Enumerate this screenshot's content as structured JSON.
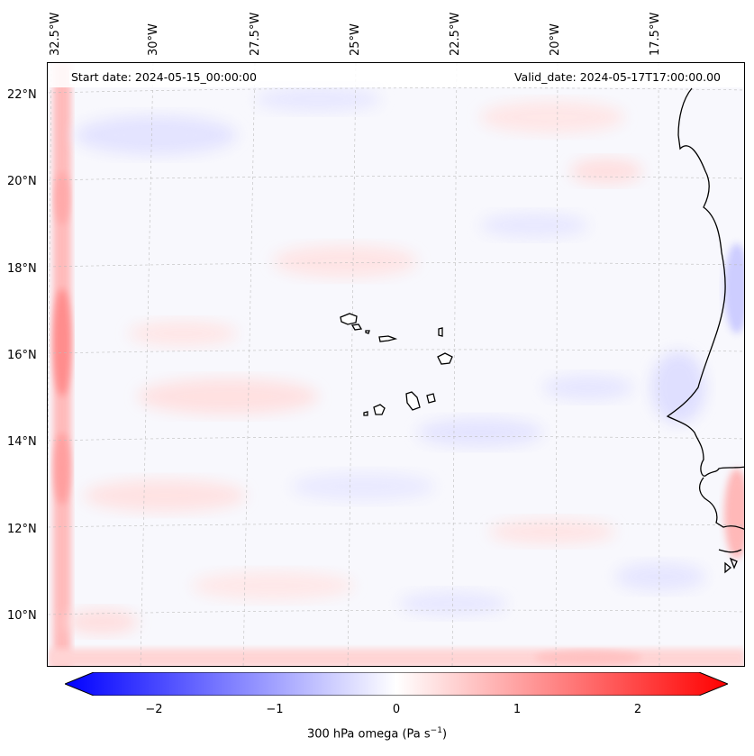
{
  "map": {
    "start_date": "Start date: 2024-05-15_00:00:00",
    "valid_date": "Valid_date: 2024-05-17T17:00:00.00",
    "lon_labels": [
      "32.5°W",
      "30°W",
      "27.5°W",
      "25°W",
      "22.5°W",
      "20°W",
      "17.5°W"
    ],
    "lat_labels": [
      "22°N",
      "20°N",
      "18°N",
      "16°N",
      "14°N",
      "12°N",
      "10°N"
    ]
  },
  "colorbar": {
    "title": "300 hPa omega (Pa s",
    "title_exp": "−1",
    "title_end": ")",
    "ticks": [
      "−2",
      "−1",
      "0",
      "1",
      "2"
    ],
    "tick_values": [
      -2,
      -1,
      0,
      1,
      2
    ],
    "range": [
      -2.5,
      2.5
    ],
    "colormap": "bwr",
    "colors": {
      "min": "#0000ff",
      "mid": "#ffffff",
      "max": "#ff0000"
    }
  }
}
